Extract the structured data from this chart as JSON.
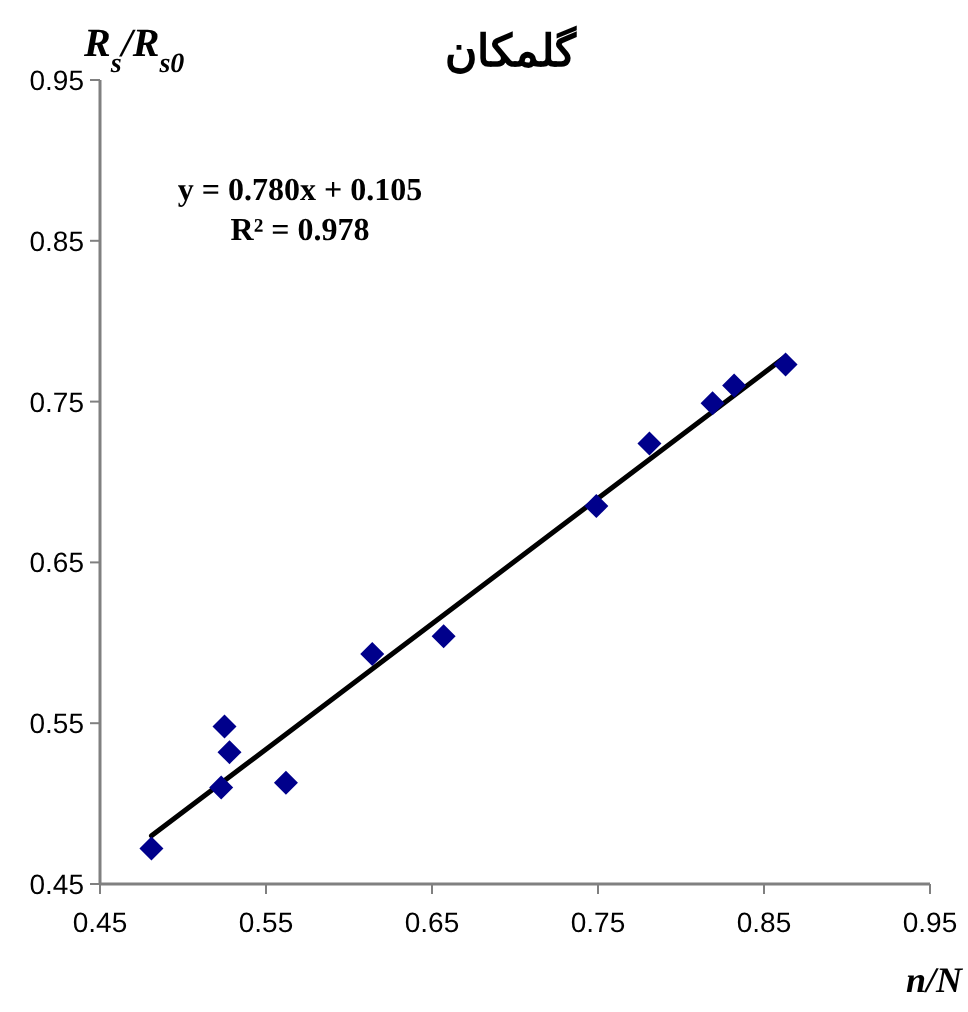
{
  "chart_data": {
    "type": "scatter",
    "title": "گلمکان",
    "xlabel": "n/N",
    "ylabel": "R$_{s}$/R$_{s0}$",
    "annotations": [
      "y = 0.780x + 0.105",
      "R² = 0.978"
    ],
    "marker": "diamond",
    "grid": false,
    "xlim": [
      0.45,
      0.95
    ],
    "xticks": [
      {
        "value": 0.45,
        "label": "0.45"
      },
      {
        "value": 0.55,
        "label": "0.55"
      },
      {
        "value": 0.65,
        "label": "0.65"
      },
      {
        "value": 0.75,
        "label": "0.75"
      },
      {
        "value": 0.85,
        "label": "0.85"
      },
      {
        "value": 0.95,
        "label": "0.95"
      }
    ],
    "ylim": [
      0.45,
      0.95
    ],
    "yticks": [
      {
        "value": 0.45,
        "label": "0.45"
      },
      {
        "value": 0.55,
        "label": "0.55"
      },
      {
        "value": 0.65,
        "label": "0.65"
      },
      {
        "value": 0.75,
        "label": "0.75"
      },
      {
        "value": 0.85,
        "label": "0.85"
      },
      {
        "value": 0.95,
        "label": "0.95"
      }
    ],
    "series": [
      {
        "color": "#00008b",
        "x": [
          0.481,
          0.525,
          0.528,
          0.523,
          0.562,
          0.614,
          0.657,
          0.749,
          0.781,
          0.819,
          0.832,
          0.863
        ],
        "values": [
          0.472,
          0.548,
          0.532,
          0.51,
          0.513,
          0.593,
          0.604,
          0.685,
          0.724,
          0.749,
          0.76,
          0.773
        ]
      },
      {
        "type": "line",
        "color": "#000000",
        "marker": "none",
        "x": [
          0.481,
          0.863
        ],
        "values": [
          0.48,
          0.778
        ]
      }
    ]
  }
}
